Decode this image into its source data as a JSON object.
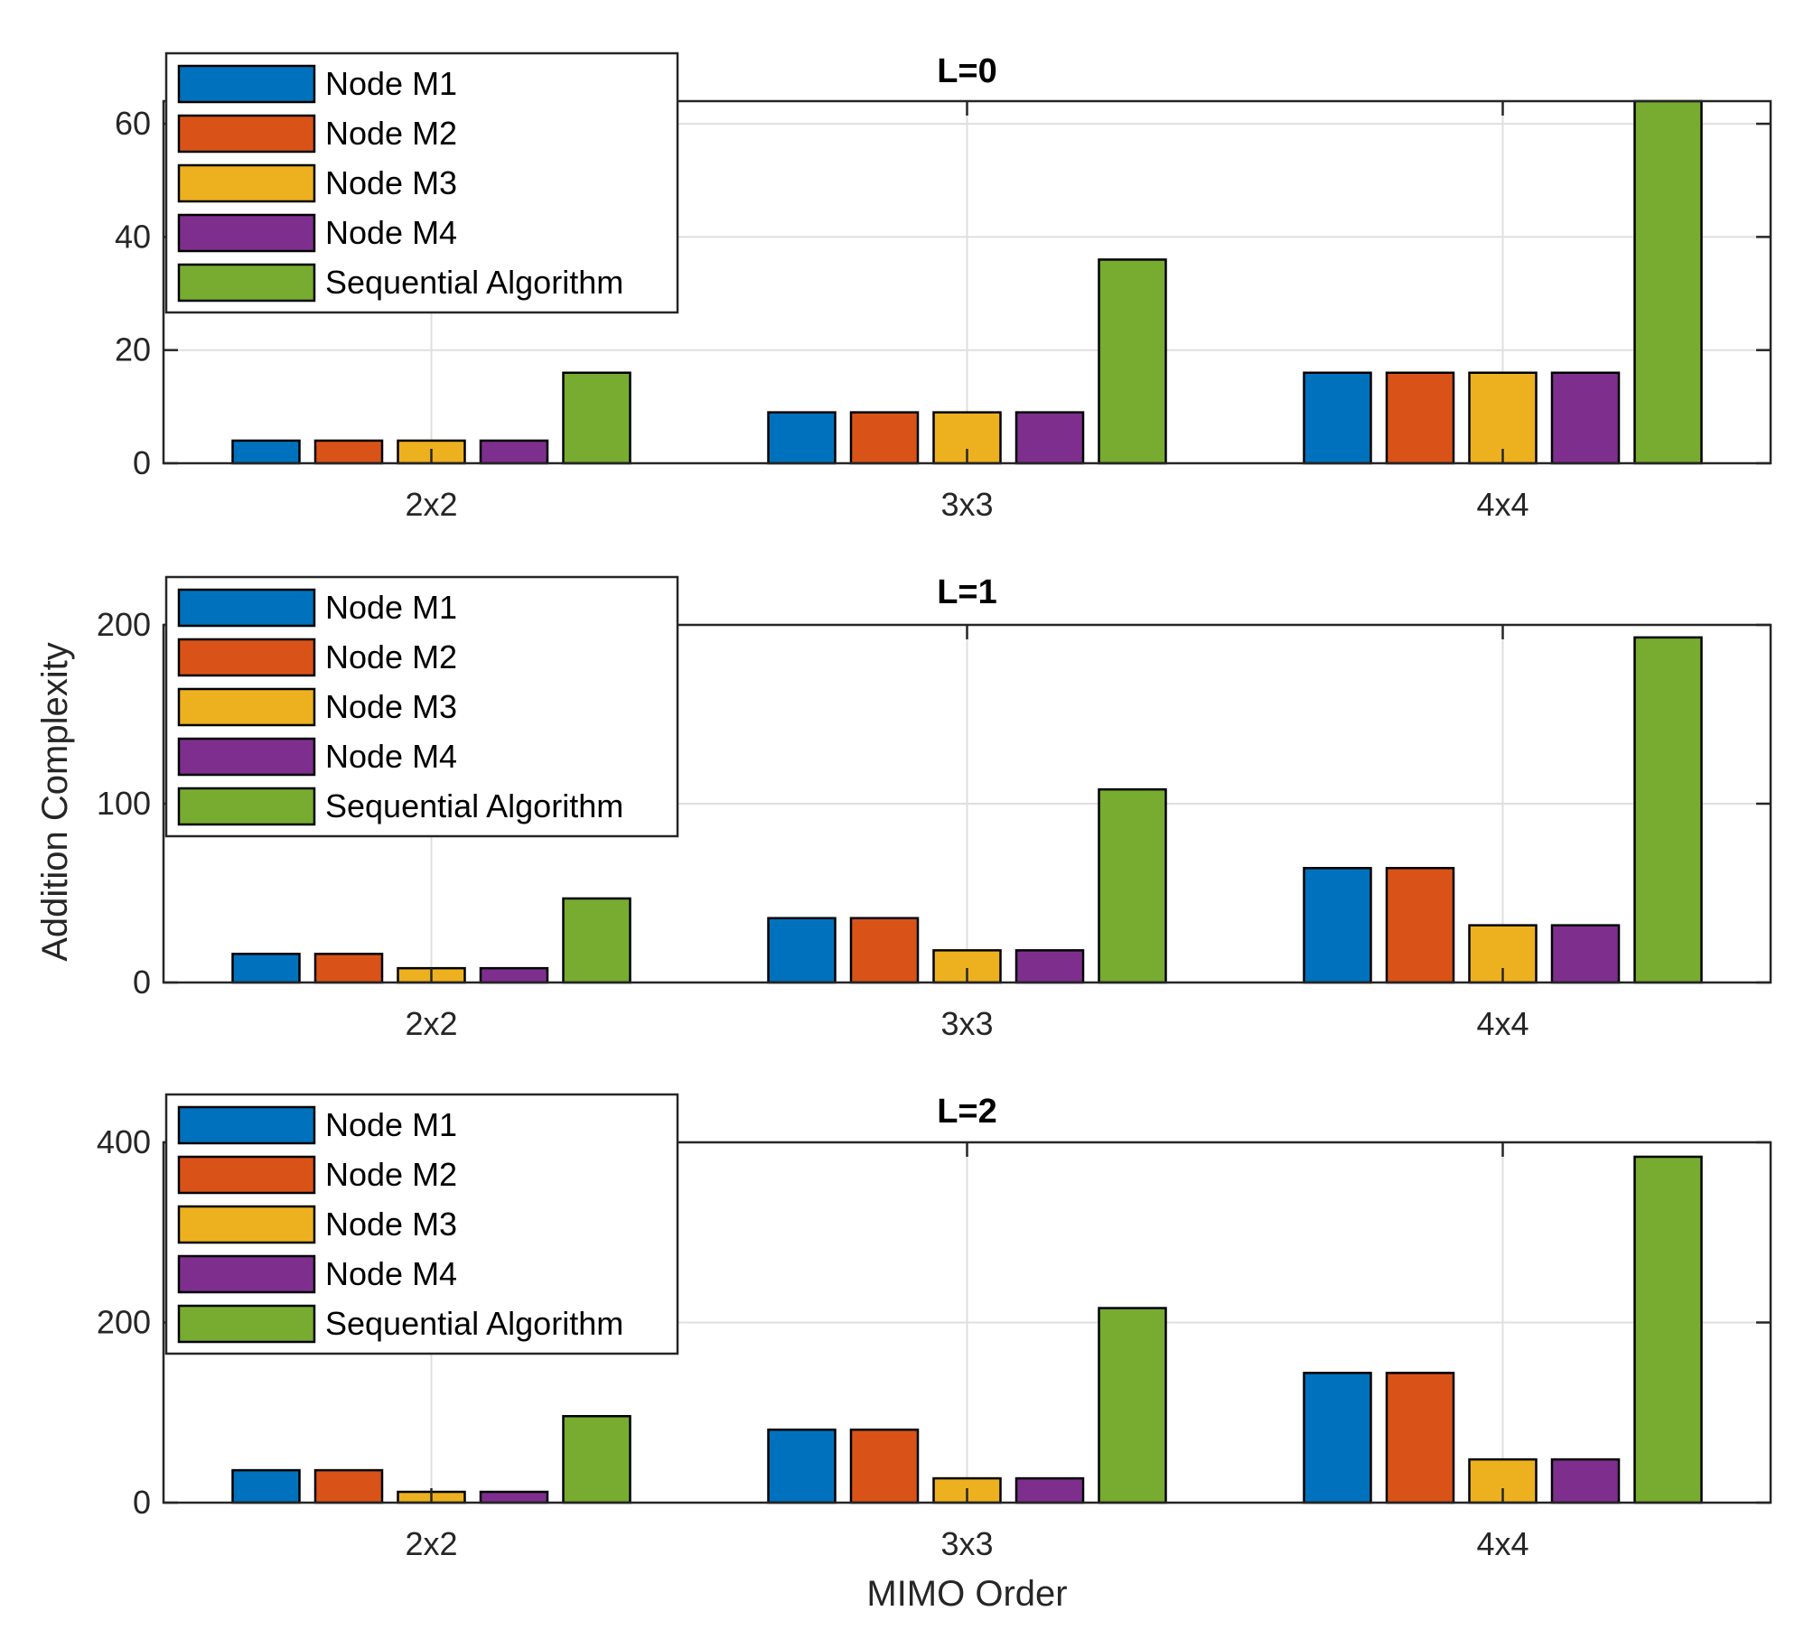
{
  "figure": {
    "ylabel": "Addition Complexity",
    "xlabel": "MIMO Order"
  },
  "colors": {
    "Node M1": "#0072BD",
    "Node M2": "#D95319",
    "Node M3": "#EDB120",
    "Node M4": "#7E2F8E",
    "Sequential Algorithm": "#77AC30",
    "grid": "#dfdfdf",
    "axis": "#262626"
  },
  "chart_data": [
    {
      "type": "bar",
      "title": "L=0",
      "xlabel": "",
      "ylabel": "",
      "categories": [
        "2x2",
        "3x3",
        "4x4"
      ],
      "ylim": [
        0,
        64
      ],
      "yticks": [
        0,
        20,
        40,
        60
      ],
      "grid": true,
      "legend_position": "top-left",
      "series": [
        {
          "name": "Node M1",
          "values": [
            4,
            9,
            16
          ]
        },
        {
          "name": "Node M2",
          "values": [
            4,
            9,
            16
          ]
        },
        {
          "name": "Node M3",
          "values": [
            4,
            9,
            16
          ]
        },
        {
          "name": "Node M4",
          "values": [
            4,
            9,
            16
          ]
        },
        {
          "name": "Sequential Algorithm",
          "values": [
            16,
            36,
            64
          ]
        }
      ]
    },
    {
      "type": "bar",
      "title": "L=1",
      "xlabel": "",
      "ylabel": "",
      "categories": [
        "2x2",
        "3x3",
        "4x4"
      ],
      "ylim": [
        0,
        200
      ],
      "yticks": [
        0,
        100,
        200
      ],
      "grid": true,
      "legend_position": "top-left",
      "series": [
        {
          "name": "Node M1",
          "values": [
            16,
            36,
            64
          ]
        },
        {
          "name": "Node M2",
          "values": [
            16,
            36,
            64
          ]
        },
        {
          "name": "Node M3",
          "values": [
            8,
            18,
            32
          ]
        },
        {
          "name": "Node M4",
          "values": [
            8,
            18,
            32
          ]
        },
        {
          "name": "Sequential Algorithm",
          "values": [
            47,
            108,
            193
          ]
        }
      ]
    },
    {
      "type": "bar",
      "title": "L=2",
      "xlabel": "",
      "ylabel": "",
      "categories": [
        "2x2",
        "3x3",
        "4x4"
      ],
      "ylim": [
        0,
        400
      ],
      "yticks": [
        0,
        200,
        400
      ],
      "grid": true,
      "legend_position": "top-left",
      "series": [
        {
          "name": "Node M1",
          "values": [
            36,
            81,
            144
          ]
        },
        {
          "name": "Node M2",
          "values": [
            36,
            81,
            144
          ]
        },
        {
          "name": "Node M3",
          "values": [
            12,
            27,
            48
          ]
        },
        {
          "name": "Node M4",
          "values": [
            12,
            27,
            48
          ]
        },
        {
          "name": "Sequential Algorithm",
          "values": [
            96,
            216,
            384
          ]
        }
      ]
    }
  ]
}
